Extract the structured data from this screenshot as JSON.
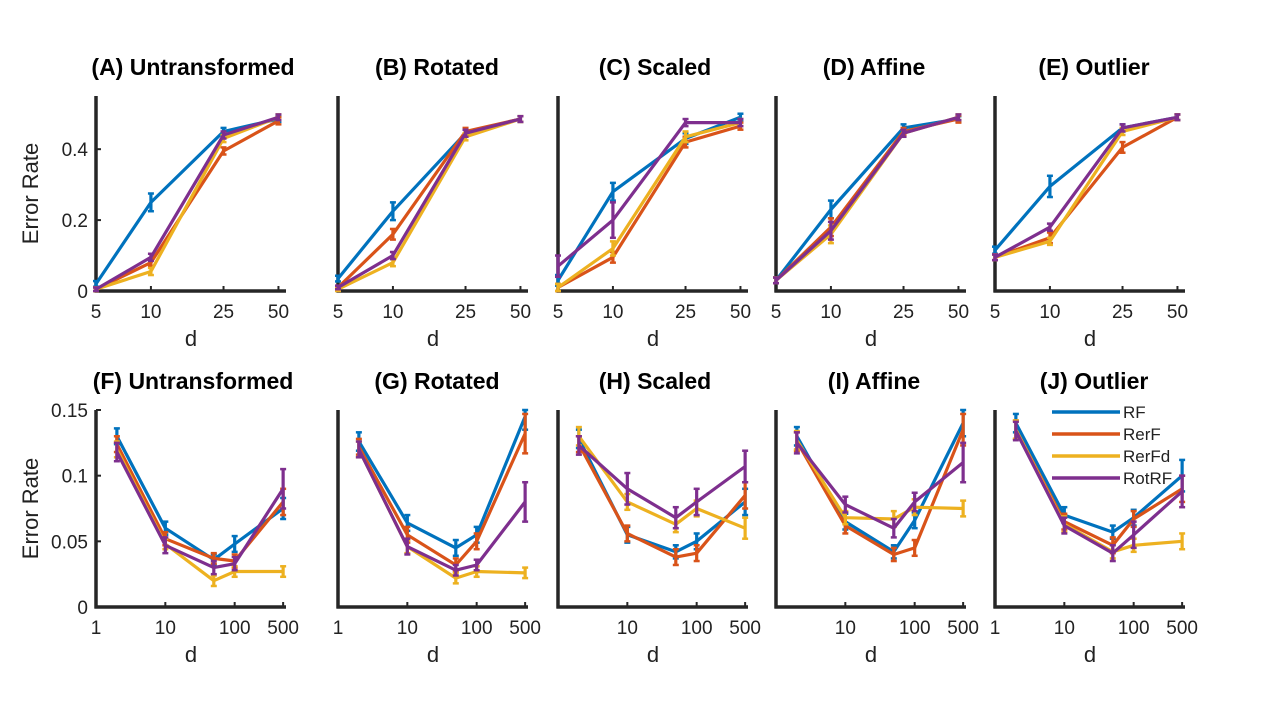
{
  "series_colors": {
    "RF": "#0072BD",
    "RerF": "#D95319",
    "RerFd": "#EDB120",
    "RotRF": "#7E2F8E"
  },
  "legend": {
    "entries": [
      "RF",
      "RerF",
      "RerFd",
      "RotRF"
    ],
    "placement": "top-right of panel (J)"
  },
  "chart_data": [
    {
      "type": "line",
      "title": "(A) Untransformed",
      "xlabel": "d",
      "ylabel": "Error Rate",
      "xscale": "log",
      "x": [
        5,
        10,
        25,
        50
      ],
      "xticks": [
        "5",
        "10",
        "25",
        "50"
      ],
      "ylim": [
        0,
        0.55
      ],
      "yticks": [
        "0",
        "0.2",
        "0.4"
      ],
      "series": [
        {
          "name": "RF",
          "values": [
            0.02,
            0.25,
            0.45,
            0.485
          ],
          "err": [
            0.008,
            0.025,
            0.01,
            0.008
          ]
        },
        {
          "name": "RerF",
          "values": [
            0.005,
            0.08,
            0.395,
            0.48
          ],
          "err": [
            0.005,
            0.01,
            0.01,
            0.01
          ]
        },
        {
          "name": "RerFd",
          "values": [
            0.005,
            0.055,
            0.43,
            0.49
          ],
          "err": [
            0.005,
            0.01,
            0.01,
            0.008
          ]
        },
        {
          "name": "RotRF",
          "values": [
            0.005,
            0.095,
            0.44,
            0.49
          ],
          "err": [
            0.005,
            0.01,
            0.01,
            0.008
          ]
        }
      ]
    },
    {
      "type": "line",
      "title": "(B) Rotated",
      "xlabel": "d",
      "ylabel": "",
      "xscale": "log",
      "x": [
        5,
        10,
        25,
        50
      ],
      "xticks": [
        "5",
        "10",
        "25",
        "50"
      ],
      "ylim": [
        0,
        0.55
      ],
      "yticks": [],
      "series": [
        {
          "name": "RF",
          "values": [
            0.035,
            0.225,
            0.445,
            0.485
          ],
          "err": [
            0.008,
            0.025,
            0.01,
            0.008
          ]
        },
        {
          "name": "RerF",
          "values": [
            0.01,
            0.16,
            0.45,
            0.485
          ],
          "err": [
            0.005,
            0.015,
            0.01,
            0.008
          ]
        },
        {
          "name": "RerFd",
          "values": [
            0.005,
            0.08,
            0.435,
            0.485
          ],
          "err": [
            0.005,
            0.01,
            0.01,
            0.008
          ]
        },
        {
          "name": "RotRF",
          "values": [
            0.01,
            0.1,
            0.445,
            0.485
          ],
          "err": [
            0.005,
            0.01,
            0.01,
            0.008
          ]
        }
      ]
    },
    {
      "type": "line",
      "title": "(C) Scaled",
      "xlabel": "d",
      "ylabel": "",
      "xscale": "log",
      "x": [
        5,
        10,
        25,
        50
      ],
      "xticks": [
        "5",
        "10",
        "25",
        "50"
      ],
      "ylim": [
        0,
        0.55
      ],
      "yticks": [],
      "series": [
        {
          "name": "RF",
          "values": [
            0.03,
            0.28,
            0.43,
            0.49
          ],
          "err": [
            0.015,
            0.025,
            0.015,
            0.01
          ]
        },
        {
          "name": "RerF",
          "values": [
            0.01,
            0.095,
            0.42,
            0.465
          ],
          "err": [
            0.01,
            0.015,
            0.015,
            0.01
          ]
        },
        {
          "name": "RerFd",
          "values": [
            0.01,
            0.12,
            0.435,
            0.475
          ],
          "err": [
            0.01,
            0.02,
            0.015,
            0.01
          ]
        },
        {
          "name": "RotRF",
          "values": [
            0.07,
            0.2,
            0.475,
            0.475
          ],
          "err": [
            0.03,
            0.05,
            0.01,
            0.01
          ]
        }
      ]
    },
    {
      "type": "line",
      "title": "(D) Affine",
      "xlabel": "d",
      "ylabel": "",
      "xscale": "log",
      "x": [
        5,
        10,
        25,
        50
      ],
      "xticks": [
        "5",
        "10",
        "25",
        "50"
      ],
      "ylim": [
        0,
        0.55
      ],
      "yticks": [],
      "series": [
        {
          "name": "RF",
          "values": [
            0.03,
            0.23,
            0.46,
            0.485
          ],
          "err": [
            0.008,
            0.025,
            0.01,
            0.008
          ]
        },
        {
          "name": "RerF",
          "values": [
            0.03,
            0.18,
            0.45,
            0.485
          ],
          "err": [
            0.008,
            0.025,
            0.01,
            0.01
          ]
        },
        {
          "name": "RerFd",
          "values": [
            0.03,
            0.16,
            0.445,
            0.49
          ],
          "err": [
            0.008,
            0.025,
            0.01,
            0.008
          ]
        },
        {
          "name": "RotRF",
          "values": [
            0.03,
            0.17,
            0.445,
            0.49
          ],
          "err": [
            0.008,
            0.025,
            0.01,
            0.008
          ]
        }
      ]
    },
    {
      "type": "line",
      "title": "(E) Outlier",
      "xlabel": "d",
      "ylabel": "",
      "xscale": "log",
      "x": [
        5,
        10,
        25,
        50
      ],
      "xticks": [
        "5",
        "10",
        "25",
        "50"
      ],
      "ylim": [
        0,
        0.55
      ],
      "yticks": [],
      "series": [
        {
          "name": "RF",
          "values": [
            0.115,
            0.295,
            0.46,
            0.49
          ],
          "err": [
            0.01,
            0.03,
            0.01,
            0.008
          ]
        },
        {
          "name": "RerF",
          "values": [
            0.095,
            0.15,
            0.405,
            0.49
          ],
          "err": [
            0.008,
            0.015,
            0.015,
            0.008
          ]
        },
        {
          "name": "RerFd",
          "values": [
            0.095,
            0.14,
            0.45,
            0.49
          ],
          "err": [
            0.008,
            0.01,
            0.01,
            0.008
          ]
        },
        {
          "name": "RotRF",
          "values": [
            0.095,
            0.18,
            0.46,
            0.49
          ],
          "err": [
            0.008,
            0.01,
            0.01,
            0.008
          ]
        }
      ]
    },
    {
      "type": "line",
      "title": "(F) Untransformed",
      "xlabel": "d",
      "ylabel": "Error Rate",
      "xscale": "log",
      "x": [
        2,
        10,
        50,
        100,
        500
      ],
      "xticks": [
        "1",
        "10",
        "100",
        "500"
      ],
      "xtick_values": [
        1,
        10,
        100,
        500
      ],
      "ylim": [
        0,
        0.15
      ],
      "yticks": [
        "0",
        "0.05",
        "0.1",
        "0.15"
      ],
      "series": [
        {
          "name": "RF",
          "values": [
            0.13,
            0.06,
            0.036,
            0.048,
            0.075
          ],
          "err": [
            0.006,
            0.005,
            0.004,
            0.006,
            0.008
          ]
        },
        {
          "name": "RerF",
          "values": [
            0.124,
            0.052,
            0.037,
            0.035,
            0.08
          ],
          "err": [
            0.006,
            0.005,
            0.004,
            0.005,
            0.01
          ]
        },
        {
          "name": "RerFd",
          "values": [
            0.12,
            0.048,
            0.02,
            0.027,
            0.027
          ],
          "err": [
            0.006,
            0.004,
            0.004,
            0.004,
            0.004
          ]
        },
        {
          "name": "RotRF",
          "values": [
            0.118,
            0.047,
            0.03,
            0.033,
            0.09
          ],
          "err": [
            0.007,
            0.006,
            0.005,
            0.005,
            0.015
          ]
        }
      ]
    },
    {
      "type": "line",
      "title": "(G) Rotated",
      "xlabel": "d",
      "ylabel": "",
      "xscale": "log",
      "x": [
        2,
        10,
        50,
        100,
        500
      ],
      "xticks": [
        "1",
        "10",
        "100",
        "500"
      ],
      "xtick_values": [
        1,
        10,
        100,
        500
      ],
      "ylim": [
        0,
        0.15
      ],
      "yticks": [],
      "series": [
        {
          "name": "RF",
          "values": [
            0.126,
            0.064,
            0.045,
            0.055,
            0.145
          ],
          "err": [
            0.007,
            0.006,
            0.006,
            0.006,
            0.01
          ]
        },
        {
          "name": "RerF",
          "values": [
            0.122,
            0.055,
            0.032,
            0.05,
            0.132
          ],
          "err": [
            0.006,
            0.006,
            0.005,
            0.006,
            0.015
          ]
        },
        {
          "name": "RerFd",
          "values": [
            0.12,
            0.046,
            0.022,
            0.027,
            0.026
          ],
          "err": [
            0.006,
            0.005,
            0.004,
            0.004,
            0.004
          ]
        },
        {
          "name": "RotRF",
          "values": [
            0.12,
            0.046,
            0.028,
            0.032,
            0.08
          ],
          "err": [
            0.006,
            0.006,
            0.004,
            0.004,
            0.015
          ]
        }
      ]
    },
    {
      "type": "line",
      "title": "(H) Scaled",
      "xlabel": "d",
      "ylabel": "",
      "xscale": "log",
      "x": [
        2,
        10,
        50,
        100,
        500
      ],
      "xticks": [
        "10",
        "100",
        "500"
      ],
      "xtick_values": [
        10,
        100,
        500
      ],
      "ylim": [
        0,
        0.15
      ],
      "yticks": [],
      "series": [
        {
          "name": "RF",
          "values": [
            0.128,
            0.055,
            0.042,
            0.05,
            0.08
          ],
          "err": [
            0.007,
            0.006,
            0.005,
            0.006,
            0.01
          ]
        },
        {
          "name": "RerF",
          "values": [
            0.124,
            0.056,
            0.038,
            0.041,
            0.085
          ],
          "err": [
            0.006,
            0.006,
            0.006,
            0.006,
            0.01
          ]
        },
        {
          "name": "RerFd",
          "values": [
            0.13,
            0.08,
            0.063,
            0.075,
            0.06
          ],
          "err": [
            0.007,
            0.006,
            0.006,
            0.006,
            0.008
          ]
        },
        {
          "name": "RotRF",
          "values": [
            0.123,
            0.09,
            0.068,
            0.08,
            0.107
          ],
          "err": [
            0.007,
            0.012,
            0.008,
            0.01,
            0.012
          ]
        }
      ]
    },
    {
      "type": "line",
      "title": "(I) Affine",
      "xlabel": "d",
      "ylabel": "",
      "xscale": "log",
      "x": [
        2,
        10,
        50,
        100,
        500
      ],
      "xticks": [
        "10",
        "100",
        "500"
      ],
      "xtick_values": [
        10,
        100,
        500
      ],
      "ylim": [
        0,
        0.15
      ],
      "yticks": [],
      "series": [
        {
          "name": "RF",
          "values": [
            0.13,
            0.065,
            0.042,
            0.066,
            0.14
          ],
          "err": [
            0.007,
            0.006,
            0.005,
            0.006,
            0.01
          ]
        },
        {
          "name": "RerF",
          "values": [
            0.126,
            0.062,
            0.04,
            0.045,
            0.135
          ],
          "err": [
            0.007,
            0.006,
            0.005,
            0.006,
            0.012
          ]
        },
        {
          "name": "RerFd",
          "values": [
            0.127,
            0.068,
            0.067,
            0.076,
            0.075
          ],
          "err": [
            0.007,
            0.005,
            0.006,
            0.006,
            0.006
          ]
        },
        {
          "name": "RotRF",
          "values": [
            0.125,
            0.078,
            0.06,
            0.08,
            0.11
          ],
          "err": [
            0.008,
            0.006,
            0.007,
            0.007,
            0.015
          ]
        }
      ]
    },
    {
      "type": "line",
      "title": "(J) Outlier",
      "xlabel": "d",
      "ylabel": "",
      "xscale": "log",
      "x": [
        2,
        10,
        50,
        100,
        500
      ],
      "xticks": [
        "1",
        "10",
        "100",
        "500"
      ],
      "xtick_values": [
        1,
        10,
        100,
        500
      ],
      "ylim": [
        0,
        0.15
      ],
      "yticks": [],
      "series": [
        {
          "name": "RF",
          "values": [
            0.14,
            0.07,
            0.057,
            0.068,
            0.1
          ],
          "err": [
            0.007,
            0.006,
            0.005,
            0.006,
            0.012
          ]
        },
        {
          "name": "RerF",
          "values": [
            0.135,
            0.065,
            0.047,
            0.067,
            0.09
          ],
          "err": [
            0.007,
            0.006,
            0.006,
            0.006,
            0.01
          ]
        },
        {
          "name": "RerFd",
          "values": [
            0.135,
            0.063,
            0.042,
            0.047,
            0.05
          ],
          "err": [
            0.007,
            0.006,
            0.005,
            0.005,
            0.006
          ]
        },
        {
          "name": "RotRF",
          "values": [
            0.134,
            0.062,
            0.041,
            0.055,
            0.088
          ],
          "err": [
            0.007,
            0.006,
            0.006,
            0.01,
            0.012
          ]
        }
      ]
    }
  ]
}
